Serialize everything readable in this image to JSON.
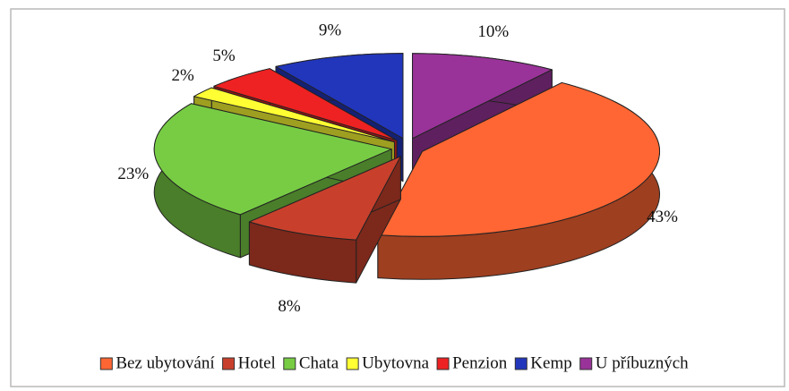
{
  "chart_data": {
    "type": "pie3d",
    "categories": [
      "Bez ubytování",
      "Hotel",
      "Chata",
      "Ubytovna",
      "Penzion",
      "Kemp",
      "U příbuzných"
    ],
    "values": [
      43,
      8,
      23,
      2,
      5,
      9,
      10
    ],
    "value_labels": [
      "43%",
      "8%",
      "23%",
      "2%",
      "5%",
      "9%",
      "10%"
    ],
    "colors": [
      "#ff6633",
      "#c8402c",
      "#77cc44",
      "#ffff33",
      "#ee2222",
      "#2236bb",
      "#993399"
    ],
    "legend": "bottom"
  }
}
